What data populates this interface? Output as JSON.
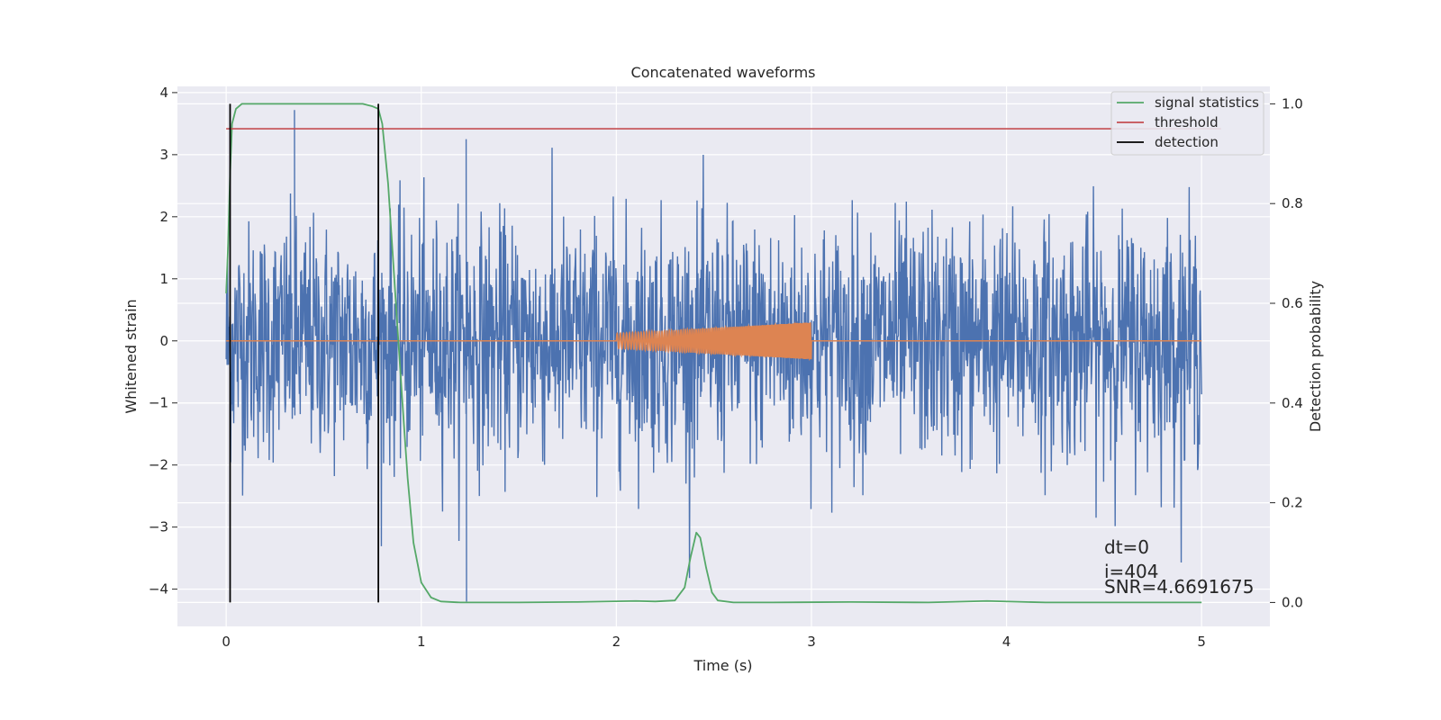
{
  "chart_data": {
    "type": "line",
    "title": "Concatenated waveforms",
    "xlabel": "Time (s)",
    "ylabel": "Whitened strain",
    "ylabel_right": "Detection probability",
    "xlim": [
      -0.25,
      5.35
    ],
    "ylim": [
      -4.6,
      4.1
    ],
    "ylim_right": [
      -0.048,
      1.035
    ],
    "xticks": [
      0,
      1,
      2,
      3,
      4,
      5
    ],
    "yticks": [
      -4,
      -3,
      -2,
      -1,
      0,
      1,
      2,
      3,
      4
    ],
    "yticks_right": [
      0.0,
      0.2,
      0.4,
      0.6,
      0.8,
      1.0
    ],
    "xtick_labels": [
      "0",
      "1",
      "2",
      "3",
      "4",
      "5"
    ],
    "ytick_labels": [
      "−4",
      "−3",
      "−2",
      "−1",
      "0",
      "1",
      "2",
      "3",
      "4"
    ],
    "ytick_right_labels": [
      "0.0",
      "0.2",
      "0.4",
      "0.6",
      "0.8",
      "1.0"
    ],
    "grid": true,
    "legend_position": "top-right",
    "legend": [
      "signal statistics",
      "threshold",
      "detection"
    ],
    "colors": {
      "strain": "#4c72b0",
      "template": "#dd8452",
      "signal_statistics": "#55a868",
      "threshold": "#c44e52",
      "detection": "#000000",
      "background": "#eaeaf2",
      "grid": "#ffffff"
    },
    "strain_noise": {
      "x_range": [
        0,
        5
      ],
      "typical_amplitude": 2.3,
      "max_peak": 3.72,
      "min_peak": -4.2
    },
    "template_chirp": {
      "x_range": [
        2.0,
        3.0
      ],
      "amplitude_start": 0.12,
      "amplitude_end": 0.3
    },
    "threshold_right": 0.95,
    "detection_times": [
      0.02,
      0.78
    ],
    "signal_statistics": {
      "x": [
        0.0,
        0.01,
        0.02,
        0.03,
        0.05,
        0.08,
        0.12,
        0.2,
        0.4,
        0.6,
        0.7,
        0.75,
        0.78,
        0.8,
        0.83,
        0.86,
        0.9,
        0.93,
        0.96,
        1.0,
        1.05,
        1.1,
        1.2,
        1.5,
        1.8,
        2.1,
        2.2,
        2.3,
        2.35,
        2.38,
        2.41,
        2.43,
        2.46,
        2.49,
        2.52,
        2.6,
        2.8,
        3.2,
        3.6,
        3.9,
        4.2,
        4.6,
        5.0
      ],
      "y": [
        0.62,
        0.72,
        0.86,
        0.96,
        0.99,
        1.0,
        1.0,
        1.0,
        1.0,
        1.0,
        1.0,
        0.995,
        0.99,
        0.96,
        0.84,
        0.66,
        0.42,
        0.25,
        0.12,
        0.04,
        0.01,
        0.002,
        0.0,
        0.0,
        0.001,
        0.003,
        0.002,
        0.004,
        0.03,
        0.09,
        0.14,
        0.13,
        0.07,
        0.02,
        0.004,
        0.0,
        0.0,
        0.001,
        0.0,
        0.003,
        0.0,
        0.0,
        0.0
      ]
    },
    "annotations": [
      "dt=0",
      "i=404",
      "SNR=4.6691675"
    ]
  }
}
